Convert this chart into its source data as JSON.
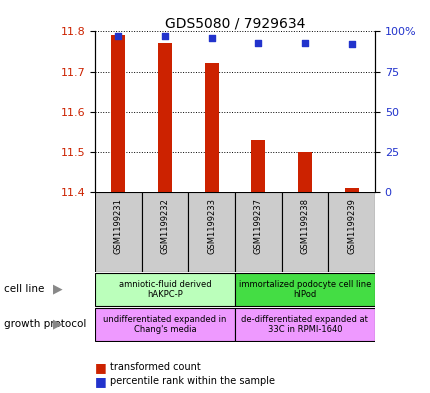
{
  "title": "GDS5080 / 7929634",
  "samples": [
    "GSM1199231",
    "GSM1199232",
    "GSM1199233",
    "GSM1199237",
    "GSM1199238",
    "GSM1199239"
  ],
  "transformed_counts": [
    11.79,
    11.77,
    11.72,
    11.53,
    11.5,
    11.41
  ],
  "percentile_ranks": [
    97,
    97,
    96,
    93,
    93,
    92
  ],
  "ylim_left": [
    11.4,
    11.8
  ],
  "ylim_right": [
    0,
    100
  ],
  "yticks_left": [
    11.4,
    11.5,
    11.6,
    11.7,
    11.8
  ],
  "yticks_right": [
    0,
    25,
    50,
    75,
    100
  ],
  "ytick_labels_right": [
    "0",
    "25",
    "50",
    "75",
    "100%"
  ],
  "bar_color": "#cc2200",
  "dot_color": "#2233cc",
  "bar_bottom": 11.4,
  "bar_width": 0.3,
  "cell_line_groups": [
    {
      "label": "amniotic-fluid derived\nhAKPC-P",
      "samples_idx": [
        0,
        1,
        2
      ],
      "color": "#bbffbb"
    },
    {
      "label": "immortalized podocyte cell line\nhIPod",
      "samples_idx": [
        3,
        4,
        5
      ],
      "color": "#44dd44"
    }
  ],
  "growth_protocol_groups": [
    {
      "label": "undifferentiated expanded in\nChang's media",
      "samples_idx": [
        0,
        1,
        2
      ],
      "color": "#ee99ff"
    },
    {
      "label": "de-differentiated expanded at\n33C in RPMI-1640",
      "samples_idx": [
        3,
        4,
        5
      ],
      "color": "#ee99ff"
    }
  ],
  "legend_items": [
    {
      "label": "transformed count",
      "color": "#cc2200"
    },
    {
      "label": "percentile rank within the sample",
      "color": "#2233cc"
    }
  ],
  "left_color": "#cc2200",
  "right_color": "#2233cc",
  "sample_box_color": "#cccccc",
  "background_color": "#ffffff"
}
